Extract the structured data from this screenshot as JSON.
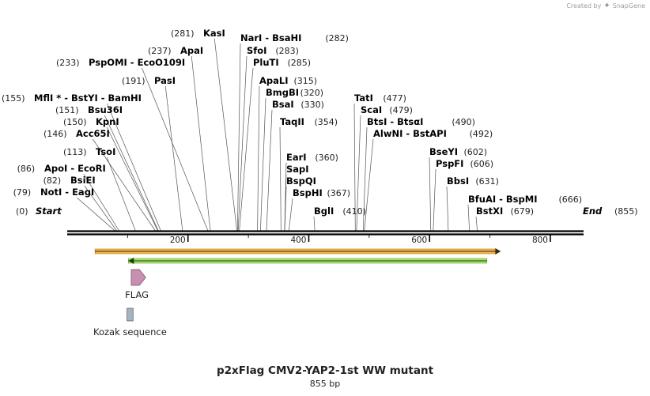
{
  "credit": {
    "prefix": "Created by",
    "brand": "SnapGene"
  },
  "map": {
    "title": "p2xFlag CMV2-YAP2-1st WW mutant",
    "length_label": "855 bp",
    "length": 855,
    "start_label": "Start",
    "start_pos": "(0)",
    "end_label": "End",
    "end_pos": "(855)",
    "ticks": [
      {
        "label": "200",
        "value": 200
      },
      {
        "label": "400",
        "value": 400
      },
      {
        "label": "600",
        "value": 600
      },
      {
        "label": "800",
        "value": 800
      }
    ]
  },
  "sites": [
    {
      "name": "KasI",
      "pos": "(281)",
      "value": 281
    },
    {
      "name": "ApaI",
      "pos": "(237)",
      "value": 237
    },
    {
      "name": "PspOMI  -  EcoO109I",
      "pos": "(233)",
      "value": 233
    },
    {
      "name": "PasI",
      "pos": "(191)",
      "value": 191
    },
    {
      "name": "MflI *  -  BstYI  -  BamHI",
      "pos": "(155)",
      "value": 155
    },
    {
      "name": "Bsu36I",
      "pos": "(151)",
      "value": 151
    },
    {
      "name": "KpnI",
      "pos": "(150)",
      "value": 150
    },
    {
      "name": "Acc65I",
      "pos": "(146)",
      "value": 146
    },
    {
      "name": "TsoI",
      "pos": "(113)",
      "value": 113
    },
    {
      "name": "ApoI  -  EcoRI",
      "pos": "(86)",
      "value": 86
    },
    {
      "name": "BsiEI",
      "pos": "(82)",
      "value": 82
    },
    {
      "name": "NotI  -  EagI",
      "pos": "(79)",
      "value": 79
    },
    {
      "name": "NarI  -  BsaHI",
      "pos": "(282)",
      "value": 282
    },
    {
      "name": "SfoI",
      "pos": "(283)",
      "value": 283
    },
    {
      "name": "PluTI",
      "pos": "(285)",
      "value": 285
    },
    {
      "name": "ApaLI",
      "pos": "(315)",
      "value": 315
    },
    {
      "name": "BmgBI",
      "pos": "(320)",
      "value": 320
    },
    {
      "name": "BsaI",
      "pos": "(330)",
      "value": 330
    },
    {
      "name": "TaqII",
      "pos": "(354)",
      "value": 354
    },
    {
      "name": "EarI",
      "pos": "(360)",
      "value": 360
    },
    {
      "name": "SapI",
      "pos": "",
      "value": 360
    },
    {
      "name": "BspQI",
      "pos": "",
      "value": 360
    },
    {
      "name": "BspHI",
      "pos": "(367)",
      "value": 367
    },
    {
      "name": "BglI",
      "pos": "(410)",
      "value": 410
    },
    {
      "name": "TatI",
      "pos": "(477)",
      "value": 477
    },
    {
      "name": "ScaI",
      "pos": "(479)",
      "value": 479
    },
    {
      "name": "BtsI  -  BtsαI",
      "pos": "(490)",
      "value": 490
    },
    {
      "name": "AlwNI  -  BstAPI",
      "pos": "(492)",
      "value": 492
    },
    {
      "name": "BseYI",
      "pos": "(602)",
      "value": 602
    },
    {
      "name": "PspFI",
      "pos": "(606)",
      "value": 606
    },
    {
      "name": "BbsI",
      "pos": "(631)",
      "value": 631
    },
    {
      "name": "BfuAI  -  BspMI",
      "pos": "(666)",
      "value": 666
    },
    {
      "name": "BstXI",
      "pos": "(679)",
      "value": 679
    }
  ],
  "features": [
    {
      "name": "orange-arrow",
      "start": 46,
      "end": 718,
      "color": "#f4b84a",
      "direction": "right"
    },
    {
      "name": "green-arrow",
      "start": 96,
      "end": 695,
      "color": "#a6e36a",
      "direction": "left"
    },
    {
      "name": "FLAG",
      "label": "FLAG",
      "start": 106,
      "end": 130,
      "color": "#c98fb0"
    },
    {
      "name": "Kozak sequence",
      "label": "Kozak sequence",
      "start": 99,
      "end": 109,
      "color": "#a5b3c0"
    }
  ]
}
